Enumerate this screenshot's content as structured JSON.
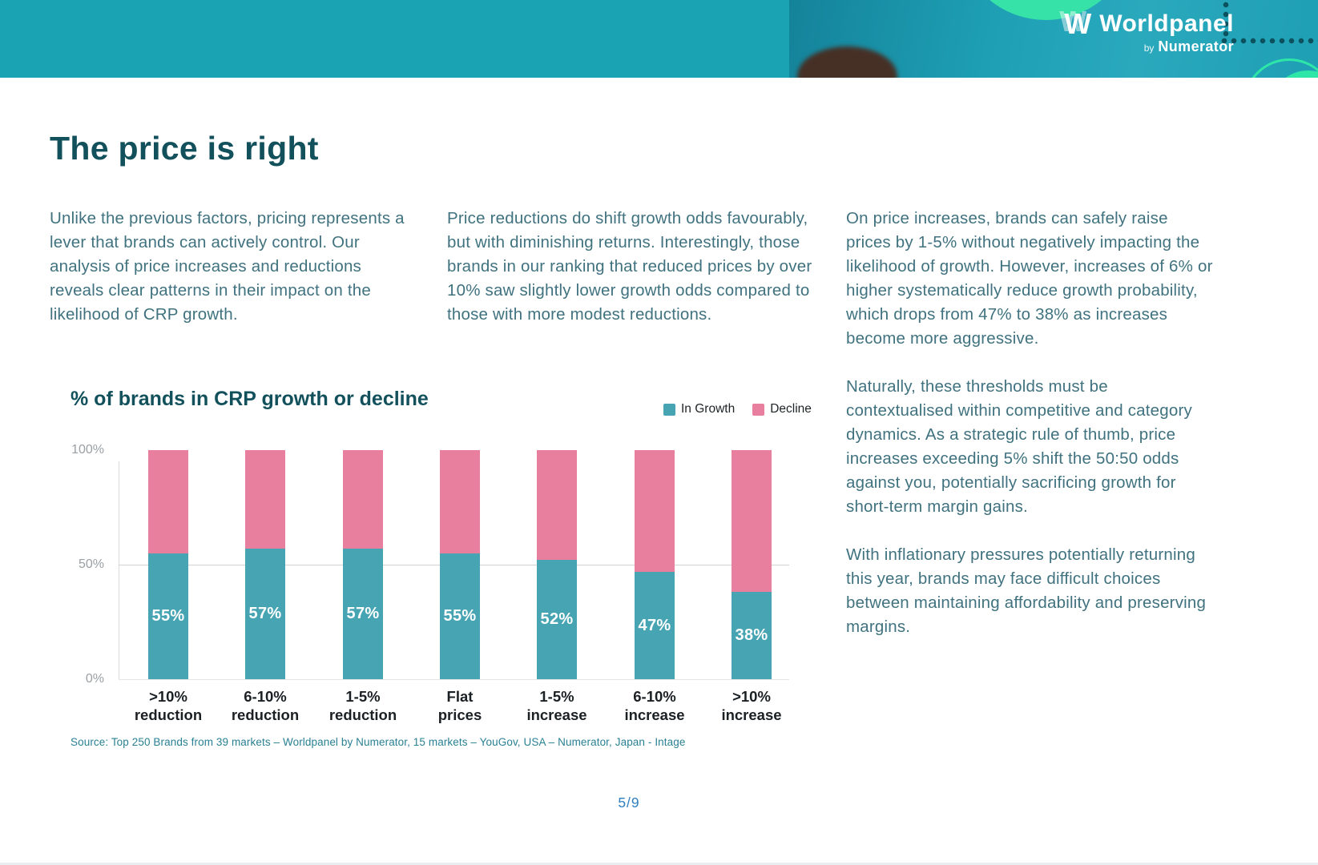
{
  "header": {
    "logo": {
      "monogram": "W",
      "brand": "Worldpanel",
      "by": "by",
      "subbrand": "Numerator"
    },
    "colors": {
      "band_teal": "#1aa3b2",
      "mint_green": "#36e2a7"
    }
  },
  "title": "The price is right",
  "columns": [
    {
      "paragraphs": [
        "Unlike the previous factors, pricing represents a lever that brands can actively control. Our analysis of price increases and reductions reveals clear patterns in their impact on the likelihood of CRP growth."
      ]
    },
    {
      "paragraphs": [
        "Price reductions do shift growth odds favourably, but with diminishing returns. Interestingly, those brands in our ranking that reduced prices by over 10% saw slightly lower growth odds compared to those with more modest reductions."
      ]
    },
    {
      "paragraphs": [
        "On price increases, brands can safely raise prices by 1-5% without negatively impacting the likelihood of growth. However, increases of 6% or higher systematically reduce growth probability, which drops from 47% to 38% as increases become more aggressive.",
        "Naturally, these thresholds must be contextualised within competitive and category dynamics. As a strategic rule of thumb, price increases exceeding 5% shift the 50:50 odds against you, potentially sacrificing growth for short-term margin gains.",
        "With inflationary pressures potentially returning this year, brands may face difficult choices between maintaining affordability and preserving margins."
      ]
    }
  ],
  "chart_data": {
    "type": "bar",
    "stacked": true,
    "title": "% of brands in CRP growth or decline",
    "categories": [
      [
        ">10%",
        "reduction"
      ],
      [
        "6-10%",
        "reduction"
      ],
      [
        "1-5%",
        "reduction"
      ],
      [
        "Flat",
        "prices"
      ],
      [
        "1-5%",
        "increase"
      ],
      [
        "6-10%",
        "increase"
      ],
      [
        ">10%",
        "increase"
      ]
    ],
    "series": [
      {
        "name": "In Growth",
        "color": "#47a4b3",
        "values": [
          55,
          57,
          57,
          55,
          52,
          47,
          38
        ]
      },
      {
        "name": "Decline",
        "color": "#e87f9f",
        "values": [
          45,
          43,
          43,
          45,
          48,
          53,
          62
        ]
      }
    ],
    "value_labels": [
      "55%",
      "57%",
      "57%",
      "55%",
      "52%",
      "47%",
      "38%"
    ],
    "ylim": [
      0,
      100
    ],
    "yticks": [
      {
        "label": "100%",
        "pct": 100
      },
      {
        "label": "50%",
        "pct": 50
      },
      {
        "label": "0%",
        "pct": 0
      }
    ],
    "grid": "horizontal line at 50%",
    "legend_position": "top-right"
  },
  "source": "Source: Top 250 Brands from 39 markets – Worldpanel by Numerator, 15 markets – YouGov, USA – Numerator, Japan - Intage",
  "footer": {
    "page": "5/9"
  }
}
